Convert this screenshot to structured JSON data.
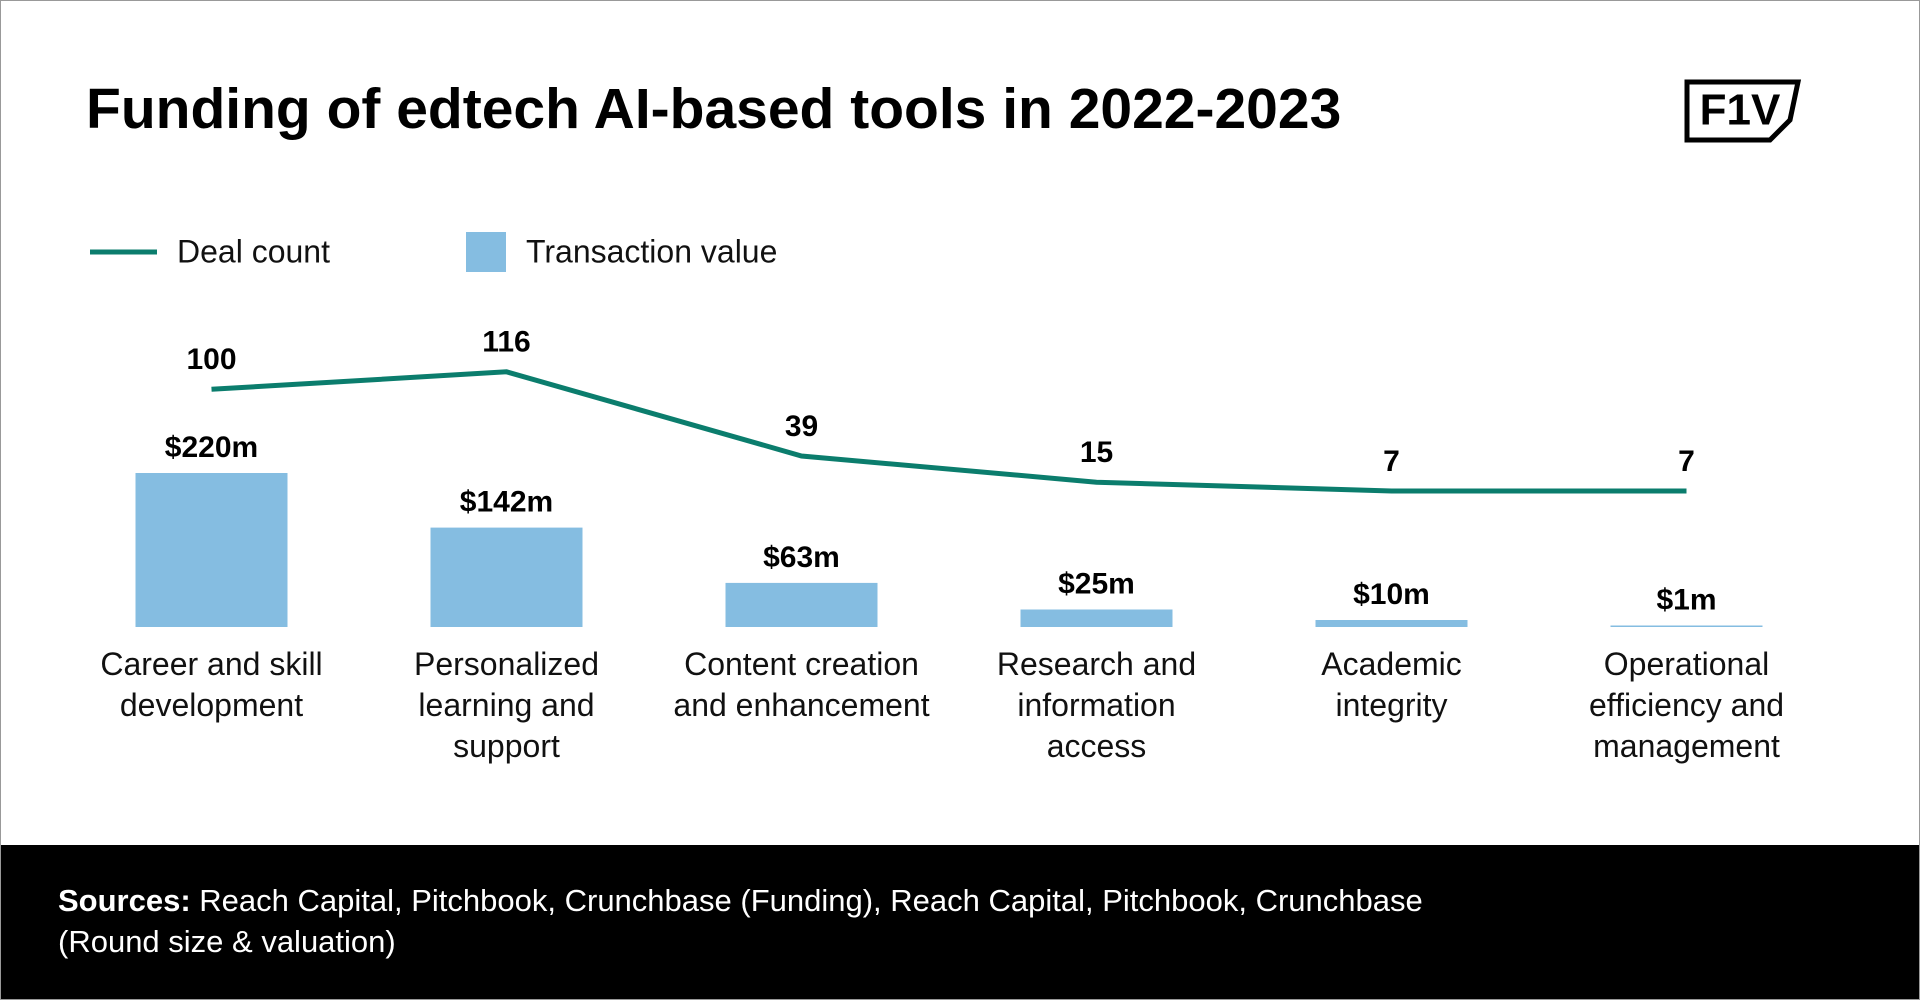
{
  "chart_data": {
    "type": "bar-line",
    "title": "Funding of edtech AI-based tools in 2022-2023",
    "logo": "F1V",
    "categories": [
      "Career and skill development",
      "Personalized learning and support",
      "Content creation and enhancement",
      "Research and information access",
      "Academic integrity",
      "Operational efficiency and management"
    ],
    "series": [
      {
        "name": "Deal count",
        "type": "line",
        "color": "#0b7d6d",
        "values": [
          100,
          116,
          39,
          15,
          7,
          7
        ]
      },
      {
        "name": "Transaction value",
        "type": "bar",
        "color": "#85bde1",
        "values": [
          220,
          142,
          63,
          25,
          10,
          1
        ],
        "value_labels": [
          "$220m",
          "$142m",
          "$63m",
          "$25m",
          "$10m",
          "$1m"
        ]
      }
    ],
    "sources_label": "Sources:",
    "sources": "Reach Capital, Pitchbook, Crunchbase (Funding), Reach Capital, Pitchbook, Crunchbase (Round size & valuation)"
  }
}
